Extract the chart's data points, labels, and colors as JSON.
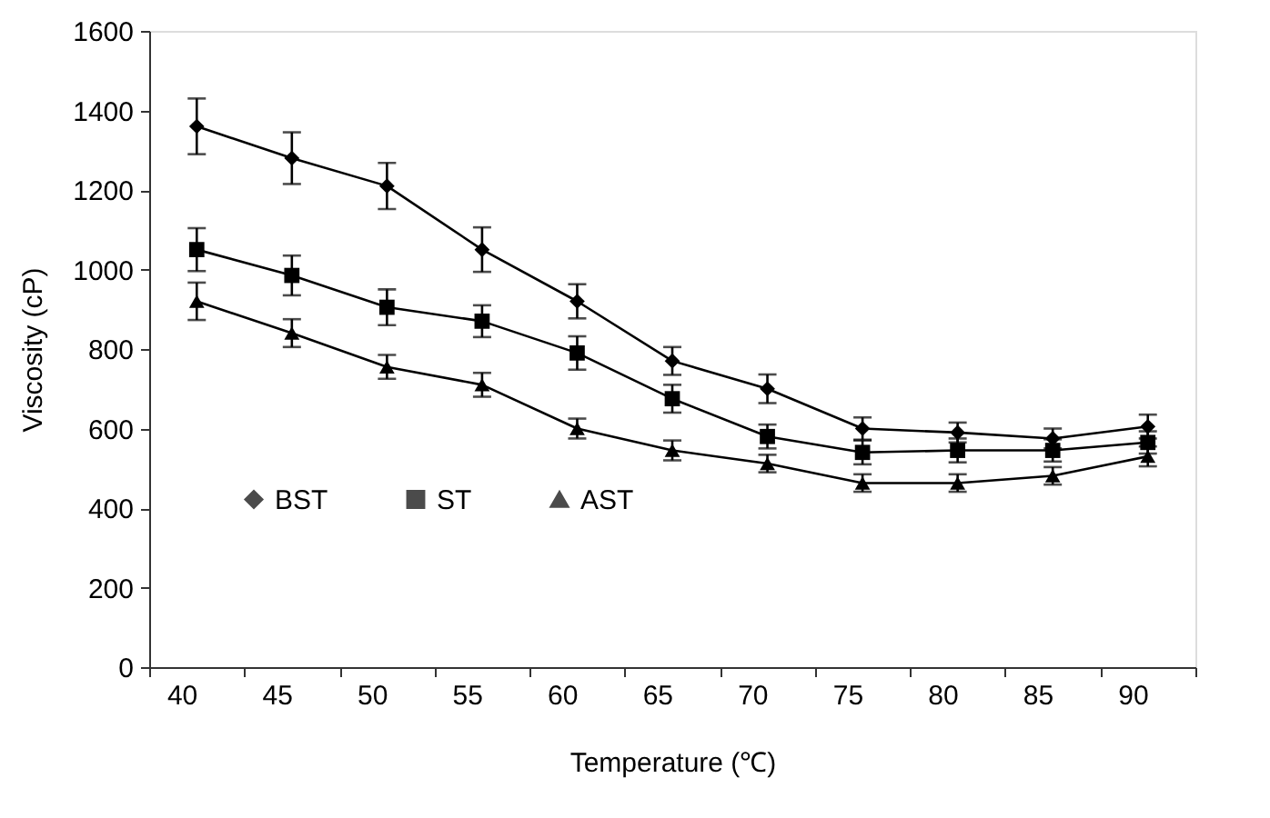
{
  "chart_data": {
    "type": "line",
    "xlabel": "Temperature (℃)",
    "ylabel": "Viscosity (cP)",
    "categories": [
      "40",
      "45",
      "50",
      "55",
      "60",
      "65",
      "70",
      "75",
      "80",
      "85",
      "90"
    ],
    "ylim": [
      0,
      1600
    ],
    "yticks": [
      0,
      200,
      400,
      600,
      800,
      1000,
      1200,
      1400,
      1600
    ],
    "grid": false,
    "legend": "bottom left",
    "line_style": "solid",
    "series": [
      {
        "name": "BST",
        "color": "#000000",
        "marker": "diamond",
        "values": [
          1360,
          1280,
          1210,
          1050,
          920,
          770,
          700,
          600,
          590,
          575,
          605
        ],
        "errors": [
          70,
          65,
          58,
          56,
          43,
          35,
          36,
          28,
          25,
          25,
          30
        ]
      },
      {
        "name": "ST",
        "color": "#000000",
        "marker": "square",
        "values": [
          1050,
          985,
          905,
          870,
          790,
          675,
          580,
          540,
          545,
          545,
          565
        ],
        "errors": [
          54,
          50,
          45,
          40,
          42,
          35,
          30,
          30,
          30,
          28,
          28
        ]
      },
      {
        "name": "AST",
        "color": "#000000",
        "marker": "triangle",
        "values": [
          920,
          840,
          755,
          710,
          600,
          545,
          512,
          463,
          463,
          481,
          530
        ],
        "errors": [
          47,
          35,
          30,
          30,
          25,
          25,
          22,
          22,
          22,
          22,
          25
        ]
      }
    ]
  }
}
